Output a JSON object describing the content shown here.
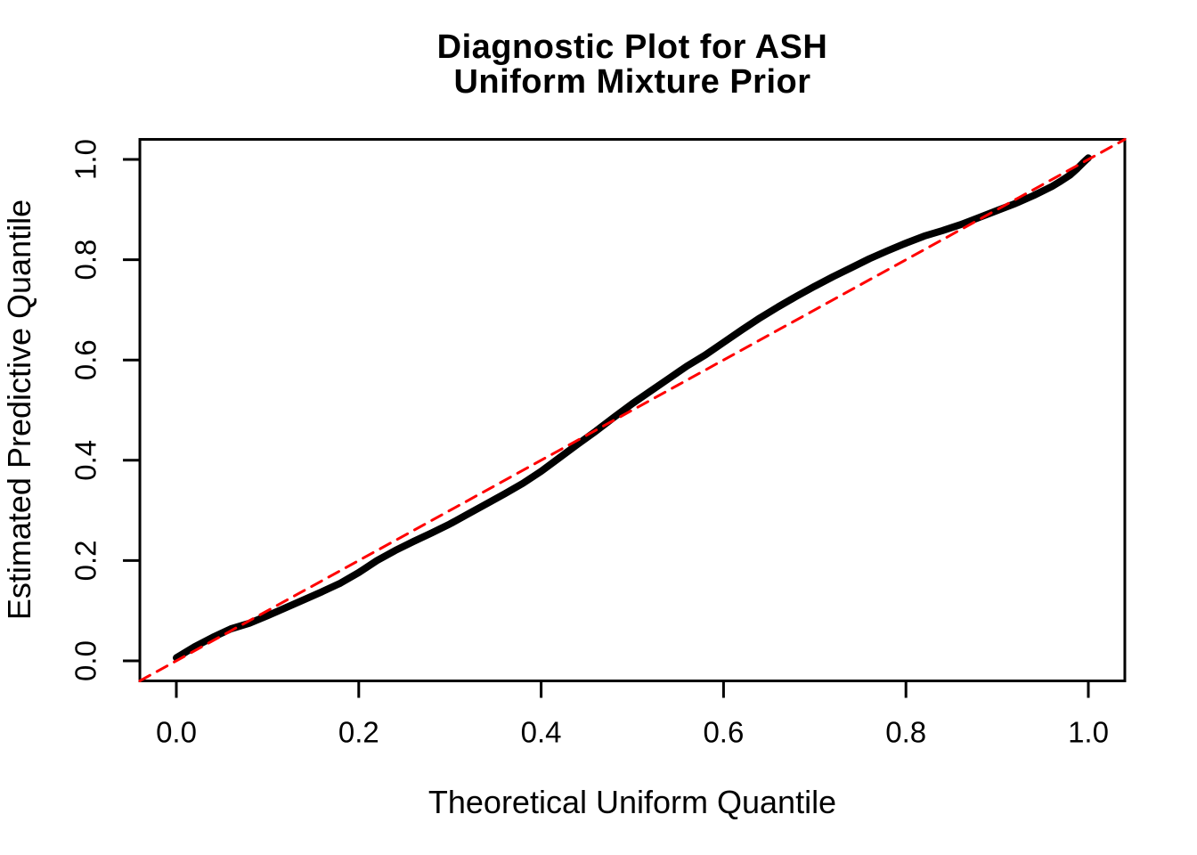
{
  "figure": {
    "title_line1": "Diagnostic Plot for ASH",
    "title_line2": "Uniform Mixture Prior",
    "xlabel": "Theoretical Uniform Quantile",
    "ylabel": "Estimated Predictive Quantile"
  },
  "colors": {
    "curve": "#000000",
    "reference_line": "#FF0000",
    "axis": "#000000",
    "text": "#000000",
    "background": "#FFFFFF"
  },
  "chart_data": {
    "type": "scatter",
    "title": "Diagnostic Plot for ASH\nUniform Mixture Prior",
    "xlabel": "Theoretical Uniform Quantile",
    "ylabel": "Estimated Predictive Quantile",
    "xlim": [
      -0.04,
      1.04
    ],
    "ylim": [
      -0.04,
      1.04
    ],
    "x_ticks": [
      0.0,
      0.2,
      0.4,
      0.6,
      0.8,
      1.0
    ],
    "x_tick_labels": [
      "0.0",
      "0.2",
      "0.4",
      "0.6",
      "0.8",
      "1.0"
    ],
    "y_ticks": [
      0.0,
      0.2,
      0.4,
      0.6,
      0.8,
      1.0
    ],
    "y_tick_labels": [
      "0.0",
      "0.2",
      "0.4",
      "0.6",
      "0.8",
      "1.0"
    ],
    "grid": false,
    "legend": null,
    "frame": true,
    "series": [
      {
        "name": "estimated-predictive-quantiles",
        "type": "line",
        "color": "#000000",
        "width": 8,
        "dash": null,
        "points": [
          [
            0.0,
            0.006
          ],
          [
            0.02,
            0.028
          ],
          [
            0.04,
            0.047
          ],
          [
            0.06,
            0.064
          ],
          [
            0.08,
            0.075
          ],
          [
            0.1,
            0.09
          ],
          [
            0.12,
            0.106
          ],
          [
            0.14,
            0.122
          ],
          [
            0.16,
            0.138
          ],
          [
            0.18,
            0.155
          ],
          [
            0.2,
            0.176
          ],
          [
            0.22,
            0.2
          ],
          [
            0.24,
            0.22
          ],
          [
            0.26,
            0.238
          ],
          [
            0.28,
            0.255
          ],
          [
            0.3,
            0.273
          ],
          [
            0.32,
            0.293
          ],
          [
            0.34,
            0.313
          ],
          [
            0.36,
            0.333
          ],
          [
            0.38,
            0.354
          ],
          [
            0.4,
            0.378
          ],
          [
            0.42,
            0.405
          ],
          [
            0.44,
            0.432
          ],
          [
            0.46,
            0.458
          ],
          [
            0.48,
            0.486
          ],
          [
            0.5,
            0.513
          ],
          [
            0.52,
            0.538
          ],
          [
            0.54,
            0.563
          ],
          [
            0.56,
            0.588
          ],
          [
            0.58,
            0.61
          ],
          [
            0.6,
            0.635
          ],
          [
            0.62,
            0.66
          ],
          [
            0.64,
            0.684
          ],
          [
            0.66,
            0.706
          ],
          [
            0.68,
            0.727
          ],
          [
            0.7,
            0.747
          ],
          [
            0.72,
            0.766
          ],
          [
            0.74,
            0.784
          ],
          [
            0.76,
            0.802
          ],
          [
            0.78,
            0.818
          ],
          [
            0.8,
            0.833
          ],
          [
            0.82,
            0.847
          ],
          [
            0.84,
            0.858
          ],
          [
            0.86,
            0.87
          ],
          [
            0.88,
            0.884
          ],
          [
            0.9,
            0.898
          ],
          [
            0.92,
            0.912
          ],
          [
            0.94,
            0.928
          ],
          [
            0.96,
            0.946
          ],
          [
            0.97,
            0.957
          ],
          [
            0.98,
            0.969
          ],
          [
            0.988,
            0.982
          ],
          [
            0.994,
            0.993
          ],
          [
            0.998,
            1.0
          ],
          [
            1.0,
            1.003
          ]
        ]
      },
      {
        "name": "identity-reference-line",
        "type": "line",
        "color": "#FF0000",
        "width": 3,
        "dash": [
          13,
          9
        ],
        "points": [
          [
            -0.04,
            -0.04
          ],
          [
            1.04,
            1.04
          ]
        ]
      }
    ]
  }
}
